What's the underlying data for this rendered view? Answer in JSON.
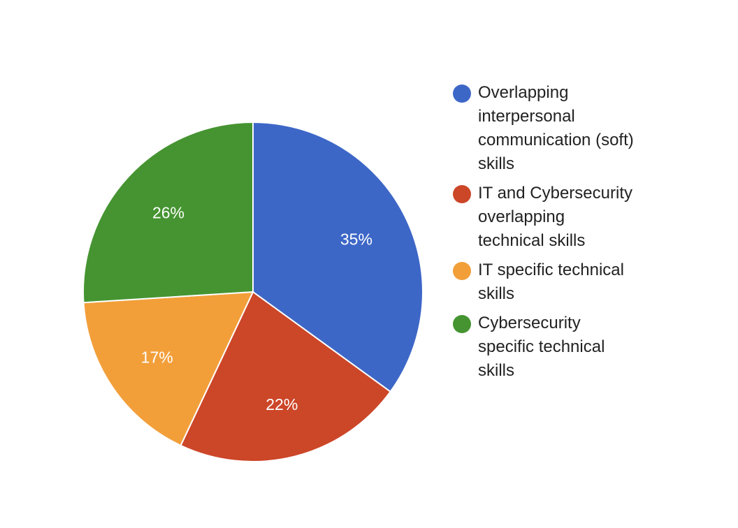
{
  "chart_data": {
    "type": "pie",
    "start_angle_deg": 0,
    "direction": "clockwise",
    "legend_position": "right",
    "slices": [
      {
        "label": "Overlapping interpersonal communication (soft) skills",
        "value": 35,
        "display": "35%",
        "color": "#3d67c7"
      },
      {
        "label": "IT and Cybersecurity overlapping technical skills",
        "value": 22,
        "display": "22%",
        "color": "#cc4628"
      },
      {
        "label": "IT specific technical skills",
        "value": 17,
        "display": "17%",
        "color": "#f29f3a"
      },
      {
        "label": "Cybersecurity specific technical skills",
        "value": 26,
        "display": "26%",
        "color": "#459431"
      }
    ]
  }
}
